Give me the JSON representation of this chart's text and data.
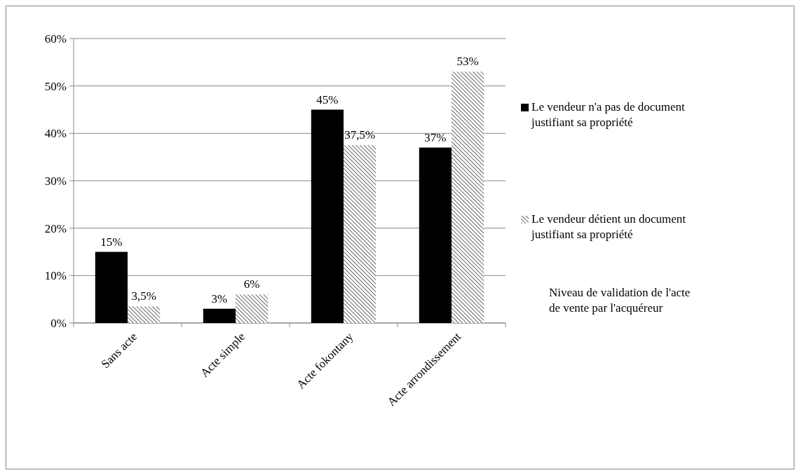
{
  "chart_data": {
    "type": "bar",
    "categories": [
      "Sans acte",
      "Acte simple",
      "Acte fokontany",
      "Acte arrondissement"
    ],
    "series": [
      {
        "name": "Le vendeur n'a pas de document justifiant sa propriété",
        "color": "#000000",
        "values": [
          15,
          3,
          45,
          37
        ],
        "value_labels": [
          "15%",
          "3%",
          "45%",
          "37%"
        ]
      },
      {
        "name": "Le vendeur détient un document justifiant sa propriété",
        "color": "#404040",
        "values": [
          3.5,
          6,
          37.5,
          53
        ],
        "value_labels": [
          "3,5%",
          "6%",
          "37,5%",
          "53%"
        ]
      }
    ],
    "ylim": [
      0,
      60
    ],
    "yticks": [
      {
        "value": 0,
        "label": "0%"
      },
      {
        "value": 10,
        "label": "10%"
      },
      {
        "value": 20,
        "label": "20%"
      },
      {
        "value": 30,
        "label": "30%"
      },
      {
        "value": 40,
        "label": "40%"
      },
      {
        "value": 50,
        "label": "50%"
      },
      {
        "value": 60,
        "label": "60%"
      }
    ],
    "grid": "y",
    "legend": "right",
    "annotations": [
      "Niveau de validation de l'acte de vente par l'acquéreur"
    ]
  }
}
